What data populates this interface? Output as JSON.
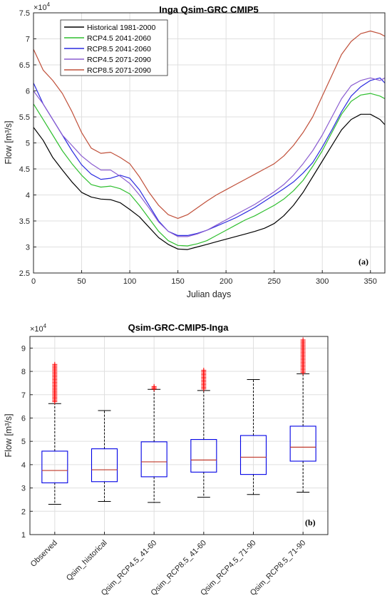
{
  "chart_data": [
    {
      "type": "line",
      "title": "Inga Qsim-GRC CMIP5",
      "xlabel": "Julian days",
      "ylabel": "Flow [m³/s]",
      "y_exponent_label": "×10",
      "y_exponent": "4",
      "panel_label": "(a)",
      "xlim": [
        0,
        365
      ],
      "ylim": [
        2.5,
        7.5
      ],
      "x_ticks": [
        0,
        50,
        100,
        150,
        200,
        250,
        300,
        350
      ],
      "y_ticks": [
        2.5,
        3,
        3.5,
        4,
        4.5,
        5,
        5.5,
        6,
        6.5,
        7,
        7.5
      ],
      "grid": true,
      "legend_position": "top-left",
      "series": [
        {
          "name": "Historical 1981-2000",
          "color": "#000000",
          "x": [
            0,
            10,
            20,
            30,
            40,
            50,
            60,
            70,
            80,
            90,
            100,
            110,
            120,
            130,
            140,
            150,
            160,
            170,
            180,
            190,
            200,
            210,
            220,
            230,
            240,
            250,
            260,
            270,
            280,
            290,
            300,
            310,
            320,
            330,
            340,
            350,
            360,
            365
          ],
          "y": [
            5.3,
            5.05,
            4.72,
            4.48,
            4.25,
            4.05,
            3.96,
            3.92,
            3.91,
            3.85,
            3.72,
            3.58,
            3.38,
            3.18,
            3.05,
            2.96,
            2.95,
            3.0,
            3.05,
            3.1,
            3.15,
            3.2,
            3.25,
            3.3,
            3.36,
            3.45,
            3.6,
            3.8,
            4.05,
            4.35,
            4.65,
            4.95,
            5.25,
            5.45,
            5.55,
            5.55,
            5.45,
            5.35
          ]
        },
        {
          "name": "RCP4.5 2041-2060",
          "color": "#2fbf2f",
          "x": [
            0,
            10,
            20,
            30,
            40,
            50,
            60,
            70,
            80,
            90,
            100,
            110,
            120,
            130,
            140,
            150,
            160,
            170,
            180,
            190,
            200,
            210,
            220,
            230,
            240,
            250,
            260,
            270,
            280,
            290,
            300,
            310,
            320,
            330,
            340,
            350,
            360,
            365
          ],
          "y": [
            5.75,
            5.45,
            5.15,
            4.85,
            4.6,
            4.38,
            4.2,
            4.15,
            4.17,
            4.12,
            4.02,
            3.8,
            3.55,
            3.3,
            3.12,
            3.03,
            3.02,
            3.06,
            3.12,
            3.22,
            3.32,
            3.42,
            3.52,
            3.6,
            3.7,
            3.8,
            3.92,
            4.08,
            4.28,
            4.55,
            4.85,
            5.2,
            5.55,
            5.8,
            5.92,
            5.95,
            5.9,
            5.85
          ]
        },
        {
          "name": "RCP8.5 2041-2060",
          "color": "#2c2ce0",
          "x": [
            0,
            10,
            20,
            30,
            40,
            50,
            60,
            70,
            80,
            90,
            100,
            110,
            120,
            130,
            140,
            150,
            160,
            170,
            180,
            190,
            200,
            210,
            220,
            230,
            240,
            250,
            260,
            270,
            280,
            290,
            300,
            310,
            320,
            330,
            340,
            350,
            360,
            365
          ],
          "y": [
            6.15,
            5.75,
            5.45,
            5.15,
            4.85,
            4.58,
            4.4,
            4.3,
            4.32,
            4.38,
            4.32,
            4.1,
            3.8,
            3.5,
            3.3,
            3.22,
            3.22,
            3.26,
            3.32,
            3.4,
            3.48,
            3.56,
            3.66,
            3.76,
            3.88,
            4.0,
            4.12,
            4.25,
            4.42,
            4.62,
            4.92,
            5.25,
            5.6,
            5.9,
            6.08,
            6.2,
            6.25,
            6.15
          ]
        },
        {
          "name": "RCP4.5 2071-2090",
          "color": "#8a5cd0",
          "x": [
            0,
            10,
            20,
            30,
            40,
            50,
            60,
            70,
            80,
            90,
            100,
            110,
            120,
            130,
            140,
            150,
            160,
            170,
            180,
            190,
            200,
            210,
            220,
            230,
            240,
            250,
            260,
            270,
            280,
            290,
            300,
            310,
            320,
            330,
            340,
            350,
            360,
            365
          ],
          "y": [
            6.0,
            5.75,
            5.45,
            5.15,
            4.95,
            4.75,
            4.6,
            4.48,
            4.48,
            4.36,
            4.22,
            4.0,
            3.75,
            3.48,
            3.3,
            3.2,
            3.2,
            3.25,
            3.32,
            3.42,
            3.52,
            3.62,
            3.72,
            3.82,
            3.94,
            4.06,
            4.2,
            4.38,
            4.6,
            4.85,
            5.15,
            5.5,
            5.85,
            6.1,
            6.2,
            6.25,
            6.2,
            6.25
          ]
        },
        {
          "name": "RCP8.5 2071-2090",
          "color": "#c0503a",
          "x": [
            0,
            10,
            20,
            30,
            40,
            50,
            60,
            70,
            80,
            90,
            100,
            110,
            120,
            130,
            140,
            150,
            160,
            170,
            180,
            190,
            200,
            210,
            220,
            230,
            240,
            250,
            260,
            270,
            280,
            290,
            300,
            310,
            320,
            330,
            340,
            350,
            360,
            365
          ],
          "y": [
            6.8,
            6.4,
            6.2,
            5.95,
            5.6,
            5.2,
            4.9,
            4.8,
            4.82,
            4.72,
            4.6,
            4.35,
            4.05,
            3.8,
            3.62,
            3.55,
            3.62,
            3.75,
            3.88,
            4.0,
            4.1,
            4.2,
            4.3,
            4.4,
            4.5,
            4.6,
            4.75,
            4.95,
            5.2,
            5.5,
            5.9,
            6.3,
            6.7,
            6.95,
            7.1,
            7.15,
            7.1,
            7.05
          ]
        }
      ]
    },
    {
      "type": "box",
      "title": "Qsim-GRC-CMIP5-Inga",
      "xlabel": "",
      "ylabel": "Flow [m³/s]",
      "y_exponent_label": "×10",
      "y_exponent": "4",
      "panel_label": "(b)",
      "ylim": [
        1,
        9.5
      ],
      "y_ticks": [
        1,
        2,
        3,
        4,
        5,
        6,
        7,
        8,
        9
      ],
      "grid": true,
      "colors": {
        "box": "#0000e6",
        "median": "#c0392b",
        "outlier": "#ff0000",
        "whisker": "#000000"
      },
      "categories": [
        "Observed",
        "Qsim_historical",
        "Qsim_RCP4.5_41-60",
        "Qsim_RCP8.5_41-60",
        "Qsim_RCP4.5_71-90",
        "Qsim_RCP8.5_71-90"
      ],
      "boxes": [
        {
          "whisker_low": 2.3,
          "q1": 3.22,
          "median": 3.75,
          "q3": 4.58,
          "whisker_high": 6.62,
          "outlier_low": 6.7,
          "outlier_high": 8.3
        },
        {
          "whisker_low": 2.42,
          "q1": 3.27,
          "median": 3.78,
          "q3": 4.68,
          "whisker_high": 6.32,
          "outlier_low": null,
          "outlier_high": null
        },
        {
          "whisker_low": 2.38,
          "q1": 3.48,
          "median": 4.12,
          "q3": 4.98,
          "whisker_high": 7.23,
          "outlier_low": 7.25,
          "outlier_high": 7.35
        },
        {
          "whisker_low": 2.6,
          "q1": 3.68,
          "median": 4.2,
          "q3": 5.08,
          "whisker_high": 7.18,
          "outlier_low": 7.25,
          "outlier_high": 8.05
        },
        {
          "whisker_low": 2.72,
          "q1": 3.58,
          "median": 4.32,
          "q3": 5.25,
          "whisker_high": 7.65,
          "outlier_low": null,
          "outlier_high": null
        },
        {
          "whisker_low": 2.82,
          "q1": 4.15,
          "median": 4.75,
          "q3": 5.65,
          "whisker_high": 7.9,
          "outlier_low": 7.95,
          "outlier_high": 9.35
        }
      ]
    }
  ]
}
